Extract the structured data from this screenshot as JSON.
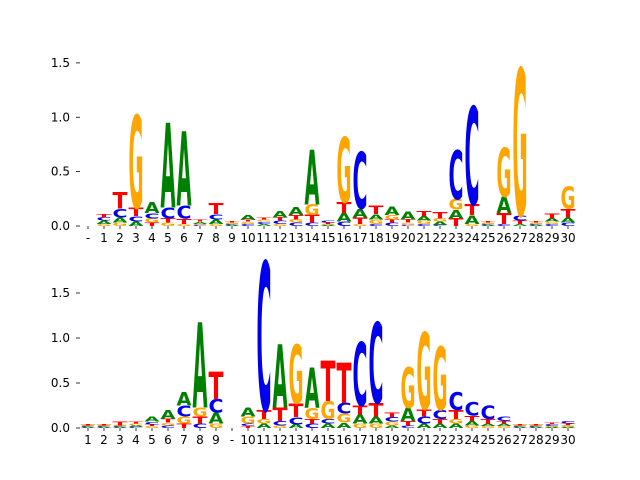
{
  "chart_data": [
    {
      "type": "logo",
      "categories": [
        "-",
        "1",
        "2",
        "3",
        "4",
        "5",
        "6",
        "7",
        "8",
        "9",
        "10",
        "11",
        "12",
        "13",
        "14",
        "15",
        "16",
        "17",
        "18",
        "19",
        "20",
        "21",
        "22",
        "23",
        "24",
        "25",
        "26",
        "27",
        "28",
        "29",
        "30"
      ],
      "series": [
        {
          "name": "A",
          "color": "#008000",
          "values": [
            0,
            0.03,
            0.05,
            0.04,
            0.1,
            0.78,
            0.68,
            0.02,
            0.04,
            0.01,
            0.04,
            0.02,
            0.06,
            0.07,
            0.5,
            0.01,
            0.08,
            0.08,
            0.05,
            0.08,
            0.07,
            0.04,
            0.03,
            0.08,
            0.08,
            0.01,
            0.15,
            0.02,
            0.01,
            0.03,
            0.05
          ]
        },
        {
          "name": "C",
          "color": "#0000ee",
          "values": [
            0,
            0.03,
            0.08,
            0.05,
            0.05,
            0.1,
            0.12,
            0.01,
            0.05,
            0.01,
            0.02,
            0.02,
            0.03,
            0.03,
            0.03,
            0.02,
            0.04,
            0.52,
            0.02,
            0.03,
            0.01,
            0.02,
            0.01,
            0.45,
            0.9,
            0.01,
            0.02,
            0.05,
            0.01,
            0.02,
            0.03
          ]
        },
        {
          "name": "G",
          "color": "#ffa500",
          "values": [
            0,
            0.02,
            0.03,
            0.85,
            0.04,
            0.03,
            0.02,
            0.01,
            0.02,
            0.01,
            0.02,
            0.02,
            0.02,
            0.03,
            0.1,
            0.01,
            0.6,
            0.02,
            0.04,
            0.04,
            0.02,
            0.03,
            0.03,
            0.1,
            0.02,
            0.01,
            0.45,
            1.35,
            0.01,
            0.02,
            0.2
          ]
        },
        {
          "name": "T",
          "color": "#ff0000",
          "values": [
            0,
            0.03,
            0.15,
            0.08,
            0.03,
            0.04,
            0.05,
            0.02,
            0.1,
            0.01,
            0.02,
            0.02,
            0.03,
            0.04,
            0.07,
            0.01,
            0.1,
            0.06,
            0.08,
            0.03,
            0.03,
            0.05,
            0.06,
            0.07,
            0.1,
            0.01,
            0.1,
            0.03,
            0.01,
            0.05,
            0.08
          ]
        }
      ],
      "ylim": [
        0,
        1.6
      ],
      "yticks": [
        {
          "value": 0,
          "label": "0.0"
        },
        {
          "value": 0.5,
          "label": "0.5"
        },
        {
          "value": 1,
          "label": "1.0"
        },
        {
          "value": 1.5,
          "label": "1.5"
        }
      ]
    },
    {
      "type": "logo",
      "categories": [
        "1",
        "2",
        "3",
        "4",
        "5",
        "6",
        "7",
        "8",
        "9",
        "-",
        "10",
        "11",
        "12",
        "13",
        "14",
        "15",
        "16",
        "17",
        "18",
        "19",
        "20",
        "21",
        "22",
        "23",
        "24",
        "25",
        "26",
        "27",
        "28",
        "29",
        "30"
      ],
      "series": [
        {
          "name": "A",
          "color": "#008000",
          "values": [
            0.01,
            0.01,
            0.01,
            0.02,
            0.06,
            0.1,
            0.15,
            0.95,
            0.12,
            0,
            0.1,
            0.05,
            0.7,
            0.04,
            0.45,
            0.05,
            0.06,
            0.1,
            0.08,
            0.03,
            0.15,
            0.05,
            0.05,
            0.05,
            0.05,
            0.03,
            0.03,
            0.01,
            0.01,
            0.01,
            0.01
          ]
        },
        {
          "name": "C",
          "color": "#0000ee",
          "values": [
            0.01,
            0.01,
            0.01,
            0.01,
            0.03,
            0.03,
            0.12,
            0.05,
            0.15,
            0,
            0.03,
            1.65,
            0.05,
            0.08,
            0.05,
            0.05,
            0.12,
            0.7,
            0.9,
            0.05,
            0.03,
            0.08,
            0.1,
            0.2,
            0.15,
            0.15,
            0.05,
            0.01,
            0.01,
            0.02,
            0.03
          ]
        },
        {
          "name": "G",
          "color": "#ffa500",
          "values": [
            0.01,
            0.01,
            0.01,
            0.02,
            0.02,
            0.03,
            0.08,
            0.1,
            0.05,
            0,
            0.08,
            0.05,
            0.03,
            0.65,
            0.12,
            0.2,
            0.1,
            0.05,
            0.05,
            0.04,
            0.45,
            0.85,
            0.7,
            0.05,
            0.03,
            0.02,
            0.02,
            0.01,
            0.01,
            0.01,
            0.02
          ]
        },
        {
          "name": "T",
          "color": "#ff0000",
          "values": [
            0.01,
            0.01,
            0.04,
            0.02,
            0.02,
            0.04,
            0.05,
            0.08,
            0.3,
            0,
            0.02,
            0.1,
            0.15,
            0.15,
            0.05,
            0.45,
            0.45,
            0.1,
            0.15,
            0.05,
            0.05,
            0.08,
            0.05,
            0.1,
            0.06,
            0.05,
            0.03,
            0.01,
            0.01,
            0.02,
            0.02
          ]
        }
      ],
      "ylim": [
        0,
        1.95
      ],
      "yticks": [
        {
          "value": 0,
          "label": "0.0"
        },
        {
          "value": 0.5,
          "label": "0.5"
        },
        {
          "value": 1,
          "label": "1.0"
        },
        {
          "value": 1.5,
          "label": "1.5"
        }
      ]
    }
  ]
}
